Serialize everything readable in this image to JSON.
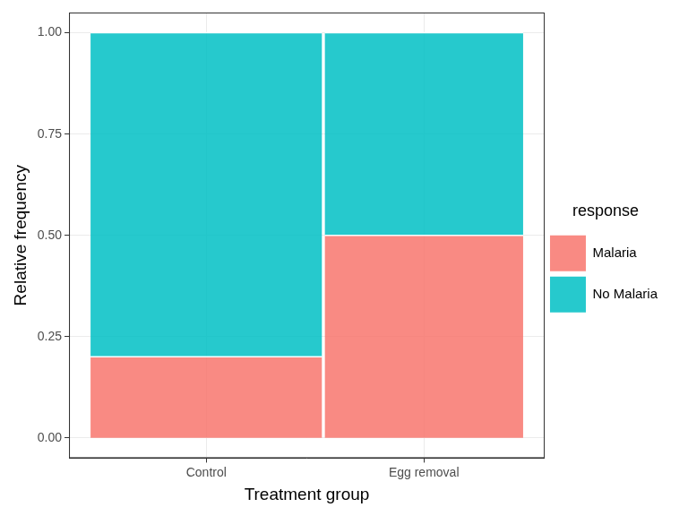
{
  "chart_data": {
    "type": "mosaic",
    "xlabel": "Treatment group",
    "ylabel": "Relative frequency",
    "categories": [
      "Control",
      "Egg removal"
    ],
    "group_sizes": [
      35,
      30
    ],
    "series": [
      {
        "name": "Malaria",
        "color": "#F8766D",
        "values": [
          0.2,
          0.5
        ]
      },
      {
        "name": "No Malaria",
        "color": "#00BFC4",
        "values": [
          0.8,
          0.5
        ]
      }
    ],
    "stacked": true,
    "ylim": [
      -0.05,
      1.05
    ],
    "yticks": [
      {
        "value": 0,
        "label": "0.00"
      },
      {
        "value": 0.25,
        "label": "0.25"
      },
      {
        "value": 0.5,
        "label": "0.50"
      },
      {
        "value": 0.75,
        "label": "0.75"
      },
      {
        "value": 1,
        "label": "1.00"
      }
    ],
    "grid": true,
    "legend": "right",
    "legend_title": "response"
  }
}
